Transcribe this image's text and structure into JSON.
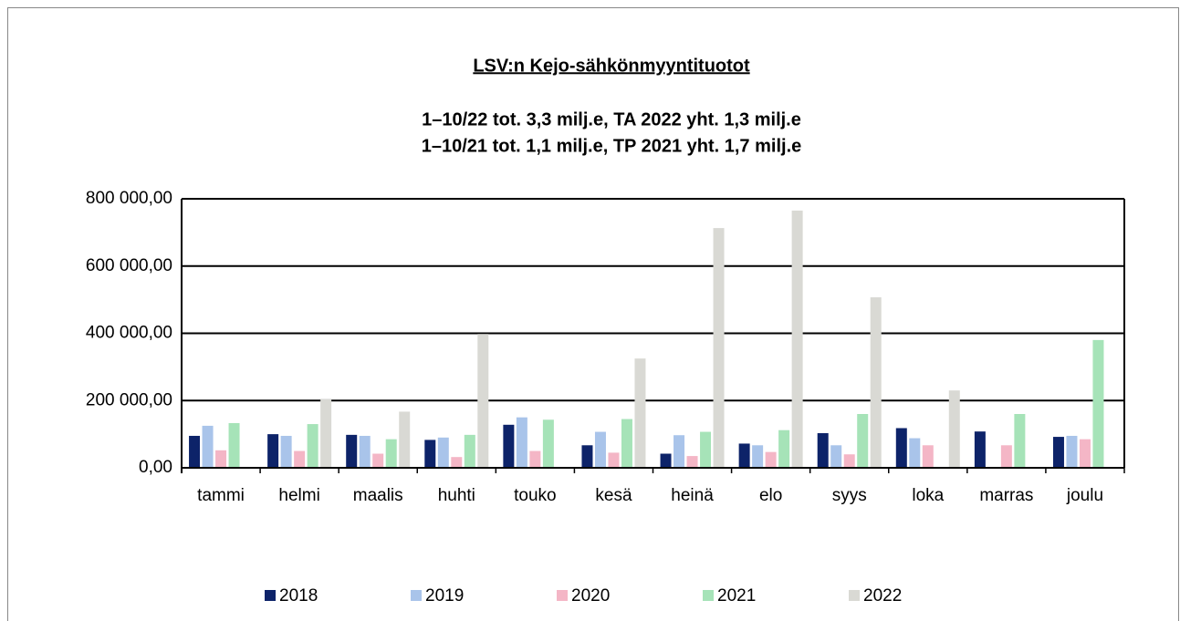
{
  "chart_data": {
    "type": "bar",
    "title": "LSV:n Kejo-sähkönmyyntituotot",
    "subtitle": [
      "1–10/22 tot. 3,3 milj.e, TA 2022 yht. 1,3 milj.e",
      "1–10/21 tot. 1,1 milj.e, TP 2021 yht. 1,7 milj.e"
    ],
    "categories": [
      "tammi",
      "helmi",
      "maalis",
      "huhti",
      "touko",
      "kesä",
      "heinä",
      "elo",
      "syys",
      "loka",
      "marras",
      "joulu"
    ],
    "series": [
      {
        "name": "2018",
        "color": "#0d2369",
        "values": [
          95000,
          100000,
          98000,
          83000,
          128000,
          67000,
          42000,
          72000,
          103000,
          118000,
          108000,
          92000
        ]
      },
      {
        "name": "2019",
        "color": "#a9c4ea",
        "values": [
          125000,
          95000,
          95000,
          90000,
          150000,
          107000,
          97000,
          67000,
          67000,
          88000,
          null,
          95000
        ]
      },
      {
        "name": "2020",
        "color": "#f4b6c6",
        "values": [
          52000,
          50000,
          42000,
          32000,
          50000,
          45000,
          35000,
          47000,
          40000,
          67000,
          67000,
          85000
        ]
      },
      {
        "name": "2021",
        "color": "#a6e3b8",
        "values": [
          133000,
          130000,
          85000,
          98000,
          143000,
          145000,
          107000,
          112000,
          160000,
          null,
          160000,
          380000
        ]
      },
      {
        "name": "2022",
        "color": "#d9d9d4",
        "values": [
          null,
          205000,
          167000,
          398000,
          null,
          325000,
          713000,
          765000,
          507000,
          230000,
          null,
          null
        ]
      }
    ],
    "ylim": [
      0,
      800000
    ],
    "yticks": [
      {
        "value": 0,
        "label": "0,00"
      },
      {
        "value": 200000,
        "label": "200 000,00"
      },
      {
        "value": 400000,
        "label": "400 000,00"
      },
      {
        "value": 600000,
        "label": "600 000,00"
      },
      {
        "value": 800000,
        "label": "800 000,00"
      }
    ],
    "grid": true,
    "legend": "bottom"
  }
}
